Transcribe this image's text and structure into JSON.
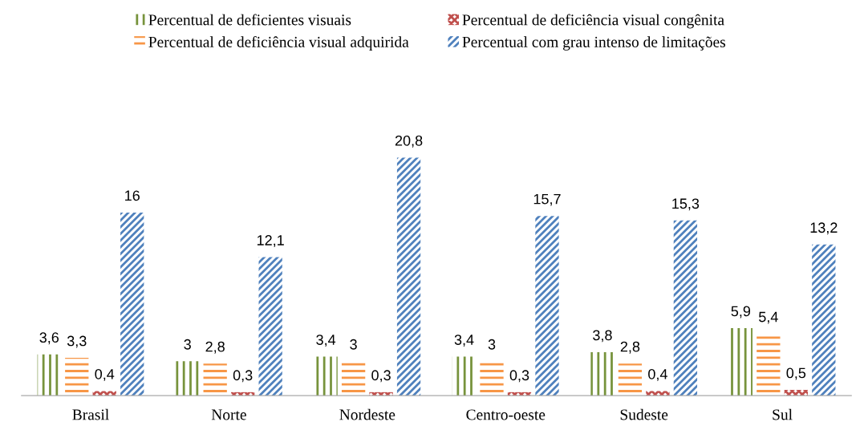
{
  "chart_data": {
    "type": "bar",
    "categories": [
      "Brasil",
      "Norte",
      "Nordeste",
      "Centro-oeste",
      "Sudeste",
      "Sul"
    ],
    "series": [
      {
        "name": "Percentual de deficientes visuais",
        "color": "#77933c",
        "values": [
          3.6,
          3,
          3.4,
          3.4,
          3.8,
          5.9
        ],
        "value_labels": [
          "3,6",
          "3",
          "3,4",
          "3,4",
          "3,8",
          "5,9"
        ]
      },
      {
        "name": "Percentual de deficiência visual adquirida",
        "color": "#f79646",
        "values": [
          3.3,
          2.8,
          3,
          3,
          2.8,
          5.4
        ],
        "value_labels": [
          "3,3",
          "2,8",
          "3",
          "3",
          "2,8",
          "5,4"
        ]
      },
      {
        "name": "Percentual de deficiência visual congênita",
        "color": "#c0504d",
        "values": [
          0.4,
          0.3,
          0.3,
          0.3,
          0.4,
          0.5
        ],
        "value_labels": [
          "0,4",
          "0,3",
          "0,3",
          "0,3",
          "0,4",
          "0,5"
        ]
      },
      {
        "name": "Percentual com grau intenso de limitações",
        "color": "#4f81bd",
        "values": [
          16,
          12.1,
          20.8,
          15.7,
          15.3,
          13.2
        ],
        "value_labels": [
          "16",
          "12,1",
          "20,8",
          "15,7",
          "15,3",
          "13,2"
        ]
      }
    ],
    "legend": "top"
  }
}
